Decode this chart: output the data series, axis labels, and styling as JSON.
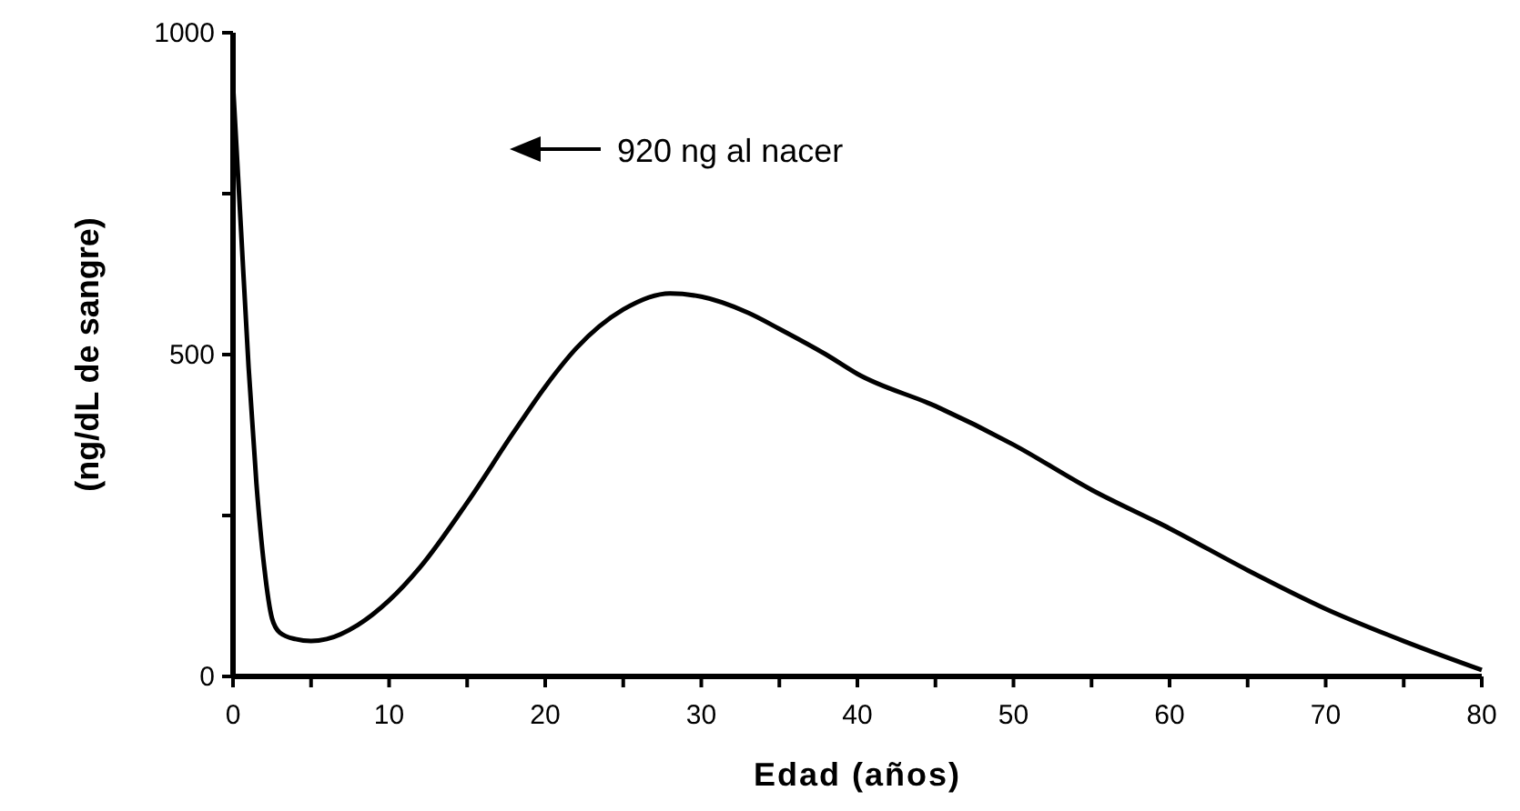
{
  "chart_data": {
    "type": "line",
    "xlabel": "Edad (años)",
    "ylabel": "(ng/dL de sangre)",
    "annotations": [
      "920 ng al nacer"
    ],
    "x": [
      0,
      0.5,
      1,
      1.5,
      2,
      2.5,
      3,
      4,
      5,
      6,
      8,
      10,
      12,
      15,
      18,
      20,
      22,
      25,
      28,
      30,
      33,
      35,
      38,
      40,
      45,
      50,
      55,
      60,
      65,
      70,
      75,
      80
    ],
    "series": [
      {
        "color": "#000000",
        "values": [
          920,
          700,
          480,
          300,
          170,
          90,
          68,
          58,
          55,
          58,
          80,
          118,
          170,
          270,
          380,
          450,
          510,
          570,
          595,
          590,
          565,
          540,
          500,
          470,
          420,
          360,
          290,
          230,
          165,
          105,
          55,
          10
        ]
      }
    ],
    "xlim": [
      0,
      80
    ],
    "ylim": [
      0,
      1000
    ],
    "xticks": [
      0,
      {
        "value": 5,
        "label": null
      },
      10,
      {
        "value": 15,
        "label": null
      },
      20,
      {
        "value": 25,
        "label": null
      },
      30,
      {
        "value": 35,
        "label": null
      },
      40,
      {
        "value": 45,
        "label": null
      },
      50,
      {
        "value": 55,
        "label": null
      },
      60,
      {
        "value": 65,
        "label": null
      },
      70,
      {
        "value": 75,
        "label": null
      },
      80
    ],
    "yticks": [
      0,
      {
        "value": 250,
        "label": null
      },
      500,
      {
        "value": 750,
        "label": null
      },
      1000
    ],
    "grid": false,
    "marker": "none",
    "line_style": "solid"
  }
}
